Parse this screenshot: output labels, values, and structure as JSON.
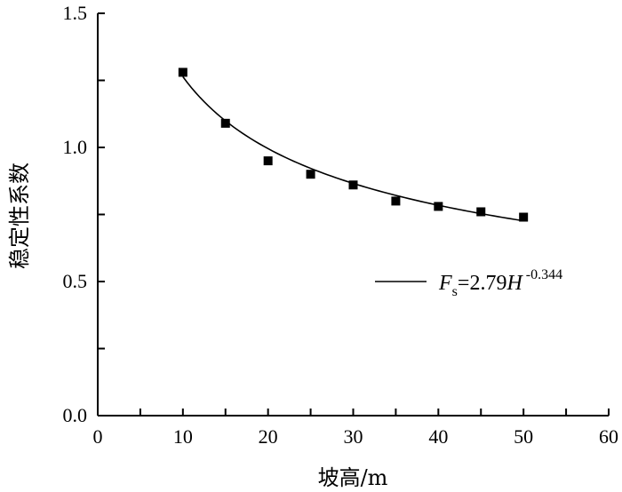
{
  "chart_data": {
    "type": "scatter",
    "xlabel": "坡高/m",
    "ylabel": "稳定性系数",
    "xlim": [
      0,
      60
    ],
    "ylim": [
      0.0,
      1.5
    ],
    "x_ticks": [
      "0",
      "10",
      "20",
      "30",
      "40",
      "50",
      "60"
    ],
    "y_ticks": [
      "0.0",
      "0.5",
      "1.0",
      "1.5"
    ],
    "grid": false,
    "legend_position": "right-middle",
    "series": [
      {
        "marker": "square",
        "x": [
          10,
          15,
          20,
          25,
          30,
          35,
          40,
          45,
          50
        ],
        "y": [
          1.28,
          1.09,
          0.95,
          0.9,
          0.86,
          0.8,
          0.78,
          0.76,
          0.74
        ]
      }
    ],
    "fit": {
      "coefficient": 2.79,
      "exponent": -0.344,
      "x_range": [
        10,
        50
      ],
      "legend": {
        "prefix": "F",
        "subscript": "s",
        "equals": "=2.79",
        "variable": "H",
        "superscript": " -0.344"
      }
    },
    "color": "#000000"
  }
}
